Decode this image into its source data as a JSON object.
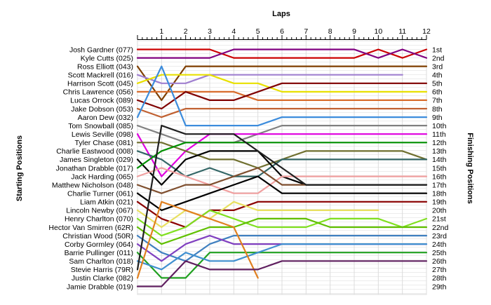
{
  "chart_data": {
    "type": "line",
    "title": "Laps",
    "ylabel_left": "Starting Positions",
    "ylabel_right": "Finishing Positions",
    "x": [
      1,
      2,
      3,
      4,
      5,
      6,
      7,
      8,
      9,
      10,
      11,
      12
    ],
    "ylim": [
      1,
      29
    ],
    "y_inverted": true,
    "grid": true,
    "starting_labels": [
      "Josh Gardner (077)",
      "Kyle Cutts (025)",
      "Ross Elliott (043)",
      "Scott Mackrell (016)",
      "Harrison Scott (045)",
      "Chris Lawrence (056)",
      "Lucas Orrock (089)",
      "Jake Dobson (053)",
      "Aaron Dew (032)",
      "Tom Snowball (085)",
      "Lewis Seville (098)",
      "Tyler Chase (081)",
      "Charlie Eastwood (008)",
      "James Singleton (029)",
      "Jonathan Drabble (017)",
      "Jack Harding (065)",
      "Matthew Nicholson (048)",
      "Charlie Turner (061)",
      "Liam Atkin (021)",
      "Lincoln Newby (067)",
      "Henry Charlton (070)",
      "Hector Van Smirren (62R)",
      "Christian Wood (50R)",
      "Corby Gormley (064)",
      "Barrie Pullinger (011)",
      "Sam Charlton (018)",
      "Stevie Harris (79R)",
      "Justin Clarke (082)",
      "Jamie Drabble (019)"
    ],
    "finishing_labels": [
      "1st",
      "2nd",
      "3rd",
      "4th",
      "5th",
      "6th",
      "7th",
      "8th",
      "9th",
      "10th",
      "11th",
      "12th",
      "13th",
      "14th",
      "15th",
      "16th",
      "17th",
      "18th",
      "19th",
      "20th",
      "21st",
      "22nd",
      "23rd",
      "24th",
      "25th",
      "26th",
      "27th",
      "28th",
      "29th"
    ],
    "series": [
      {
        "start": 1,
        "positions": [
          1,
          1,
          1,
          2,
          2,
          2,
          2,
          2,
          2,
          1,
          2,
          1
        ],
        "color": "#cc0000"
      },
      {
        "start": 2,
        "positions": [
          2,
          2,
          2,
          1,
          1,
          1,
          1,
          1,
          1,
          2,
          1,
          2
        ],
        "color": "#800080"
      },
      {
        "start": 3,
        "positions": [
          7,
          3,
          3,
          3,
          3,
          3,
          3,
          3,
          3,
          3,
          3,
          3
        ],
        "color": "#7f3f00"
      },
      {
        "start": 4,
        "positions": [
          5,
          5,
          4,
          4,
          4,
          4,
          4,
          4,
          4,
          4,
          4
        ],
        "color": "#a080d0"
      },
      {
        "start": 5,
        "positions": [
          4,
          4,
          4,
          5,
          5,
          6,
          6,
          6,
          6,
          6,
          6,
          6
        ],
        "color": "#e8e000"
      },
      {
        "start": 6,
        "positions": [
          6,
          6,
          6,
          6,
          7,
          7,
          7,
          7,
          7,
          7,
          7,
          7
        ],
        "color": "#d86c2c"
      },
      {
        "start": 7,
        "positions": [
          8,
          6,
          7,
          7,
          6,
          5,
          5,
          5,
          5,
          5,
          5,
          5
        ],
        "color": "#7f0000"
      },
      {
        "start": 8,
        "positions": [
          9,
          8,
          8,
          8,
          8,
          8,
          8,
          8,
          8,
          8,
          8,
          8
        ],
        "color": "#c06030"
      },
      {
        "start": 9,
        "positions": [
          3,
          10,
          10,
          10,
          10,
          9,
          9,
          9,
          9,
          9,
          9,
          9
        ],
        "color": "#3c8cdc"
      },
      {
        "start": 10,
        "positions": [
          11,
          12,
          12,
          12,
          11,
          10,
          10,
          10,
          10,
          10,
          10,
          10
        ],
        "color": "#808080"
      },
      {
        "start": 11,
        "positions": [
          16,
          13,
          11,
          11,
          11,
          11,
          11,
          11,
          11,
          11,
          11,
          11
        ],
        "color": "#e000e0"
      },
      {
        "start": 12,
        "positions": [
          12,
          13,
          14,
          14,
          15,
          14,
          13,
          13,
          13,
          13,
          13,
          14
        ],
        "color": "#707030"
      },
      {
        "start": 13,
        "positions": [
          14,
          16,
          15,
          16,
          16,
          14,
          14,
          14,
          14,
          14,
          14,
          14
        ],
        "color": "#336666"
      },
      {
        "start": 14,
        "positions": [
          17,
          14,
          13,
          13,
          13,
          16,
          17,
          17,
          17,
          17,
          17,
          17
        ],
        "color": "#000000"
      },
      {
        "start": 15,
        "positions": [
          13,
          12,
          12,
          12,
          12,
          12,
          12,
          12,
          12,
          12,
          12,
          12
        ],
        "color": "#009000"
      },
      {
        "start": 16,
        "positions": [
          15,
          16,
          17,
          18,
          18,
          16,
          16,
          16,
          16,
          16,
          16,
          16
        ],
        "color": "#f0a0a0"
      },
      {
        "start": 17,
        "positions": [
          18,
          17,
          17,
          16,
          15,
          17,
          17
        ],
        "color": "#7f4f2f"
      },
      {
        "start": 18,
        "positions": [
          20,
          19,
          18,
          17,
          16,
          18,
          18,
          18,
          18,
          18,
          18,
          18
        ],
        "color": "#000000"
      },
      {
        "start": 19,
        "positions": [
          21,
          22,
          20,
          20,
          19,
          19,
          19,
          19,
          19,
          19,
          19,
          19
        ],
        "color": "#8b0000"
      },
      {
        "start": 20,
        "positions": [
          22,
          20,
          21,
          19,
          20,
          20,
          20,
          20,
          20,
          20
        ],
        "color": "#e8e060"
      },
      {
        "start": 21,
        "positions": [
          23,
          22,
          20,
          21,
          22,
          22,
          22,
          21,
          21,
          21,
          22,
          21
        ],
        "color": "#80e020"
      },
      {
        "start": 22,
        "positions": [
          24,
          23,
          22,
          22,
          21,
          21,
          21,
          22,
          22,
          22,
          22,
          22
        ],
        "color": "#60c000"
      },
      {
        "start": 23,
        "positions": [
          25,
          26,
          24,
          23,
          23,
          23,
          23,
          23,
          23,
          23,
          23,
          23
        ],
        "color": "#4080c0"
      },
      {
        "start": 24,
        "positions": [
          26,
          24,
          23,
          24,
          24,
          24,
          24,
          24,
          24,
          24,
          24,
          24
        ],
        "color": "#8040c0"
      },
      {
        "start": 25,
        "positions": [
          28,
          28,
          25,
          25,
          25,
          25,
          25,
          25,
          25,
          25,
          25,
          25
        ],
        "color": "#20a020"
      },
      {
        "start": 26,
        "positions": [
          27,
          25,
          26,
          26,
          25,
          24,
          24,
          24,
          24,
          24,
          24,
          24
        ],
        "color": "#4090d0"
      },
      {
        "start": 27,
        "positions": [
          10,
          11,
          11,
          11,
          13,
          15,
          17,
          17,
          17,
          17,
          17,
          17
        ],
        "color": "#202020"
      },
      {
        "start": 28,
        "positions": [
          19,
          20,
          21,
          22,
          28
        ],
        "color": "#e08020"
      },
      {
        "start": 29,
        "positions": [
          29,
          26,
          27,
          27,
          27,
          26,
          26,
          26,
          26,
          26,
          26,
          26
        ],
        "color": "#602060"
      }
    ]
  }
}
